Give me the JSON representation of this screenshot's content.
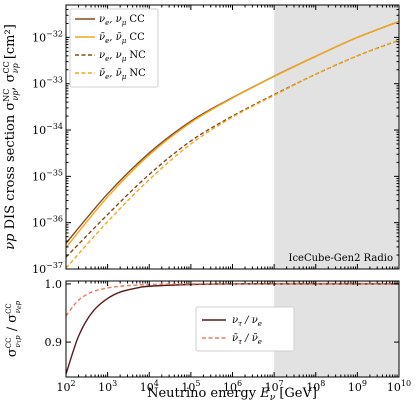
{
  "chart_data": [
    {
      "type": "line",
      "xscale": "log",
      "yscale": "log",
      "xlim": [
        100,
        10000000000
      ],
      "ylim": [
        1e-37,
        5e-32
      ],
      "xlabel": "Neutrino energy E_ν [GeV]",
      "ylabel": "νp DIS cross section σ^NC_νp, σ^CC_νp [cm²]",
      "yticks": [
        "10^-37",
        "10^-36",
        "10^-35",
        "10^-34",
        "10^-33",
        "10^-32"
      ],
      "shaded_region": {
        "x_from": 10000000,
        "x_to": 10000000000,
        "label": "IceCube-Gen2 Radio",
        "color": "#e2e2e2"
      },
      "legend_position": "top-left",
      "grid": false,
      "series": [
        {
          "name": "ν_e, ν_μ CC",
          "style": "solid",
          "color": "#8b4a14",
          "x": [
            100,
            1000,
            10000,
            100000,
            1000000,
            10000000,
            100000000,
            1000000000,
            10000000000
          ],
          "y": [
            3.6e-37,
            4.2e-36,
            3.2e-35,
            1.55e-34,
            5e-34,
            1.45e-33,
            3.9e-33,
            1e-32,
            2.2e-32
          ]
        },
        {
          "name": "ν̄_e, ν̄_μ CC",
          "style": "solid",
          "color": "#f2a81d",
          "x": [
            100,
            1000,
            10000,
            100000,
            1000000,
            10000000,
            100000000,
            1000000000,
            10000000000
          ],
          "y": [
            2.9e-37,
            3.6e-36,
            2.9e-35,
            1.45e-34,
            4.9e-34,
            1.43e-33,
            3.9e-33,
            1e-32,
            2.2e-32
          ]
        },
        {
          "name": "ν_e, ν_μ NC",
          "style": "dashed",
          "color": "#8b4a14",
          "x": [
            100,
            1000,
            10000,
            100000,
            1000000,
            10000000,
            100000000,
            1000000000,
            10000000000
          ],
          "y": [
            1.8e-37,
            1.5e-36,
            1.1e-35,
            5.8e-35,
            2e-34,
            5.8e-34,
            1.6e-33,
            4e-33,
            8.7e-33
          ]
        },
        {
          "name": "ν̄_e, ν̄_μ NC",
          "style": "dashed",
          "color": "#f2a81d",
          "x": [
            100,
            1000,
            10000,
            100000,
            1000000,
            10000000,
            100000000,
            1000000000,
            10000000000
          ],
          "y": [
            1.05e-37,
            1.05e-36,
            8.5e-36,
            5e-35,
            1.9e-34,
            5.6e-34,
            1.6e-33,
            4e-33,
            8.7e-33
          ]
        }
      ]
    },
    {
      "type": "line",
      "xscale": "log",
      "yscale": "linear",
      "xlim": [
        100,
        10000000000
      ],
      "ylim": [
        0.84,
        1.005
      ],
      "xlabel": "Neutrino energy E_ν [GeV]",
      "ylabel": "σ^CC_ντp / σ^CC_νep",
      "xticks": [
        "10^2",
        "10^3",
        "10^4",
        "10^5",
        "10^6",
        "10^7",
        "10^8",
        "10^9",
        "10^10"
      ],
      "yticks": [
        "0.9",
        "1.0"
      ],
      "shaded_region": {
        "x_from": 10000000,
        "x_to": 10000000000,
        "color": "#e2e2e2"
      },
      "legend_position": "bottom-center",
      "series": [
        {
          "name": "ν_τ / ν_e",
          "style": "solid",
          "color": "#5a1a1a",
          "x": [
            100,
            150,
            200,
            300,
            500,
            1000,
            2000,
            5000,
            10000,
            100000,
            1000000,
            10000000,
            10000000000
          ],
          "y": [
            0.845,
            0.885,
            0.91,
            0.935,
            0.957,
            0.975,
            0.986,
            0.993,
            0.996,
            0.999,
            1.0,
            1.0,
            1.0
          ]
        },
        {
          "name": "ν̄_τ / ν̄_e",
          "style": "dashed",
          "color": "#f07a5a",
          "x": [
            100,
            150,
            200,
            300,
            500,
            1000,
            2000,
            5000,
            10000,
            100000,
            1000000,
            10000000,
            10000000000
          ],
          "y": [
            0.945,
            0.962,
            0.972,
            0.981,
            0.988,
            0.993,
            0.996,
            0.998,
            0.999,
            1.0,
            1.0,
            1.0,
            1.0
          ]
        }
      ]
    }
  ]
}
